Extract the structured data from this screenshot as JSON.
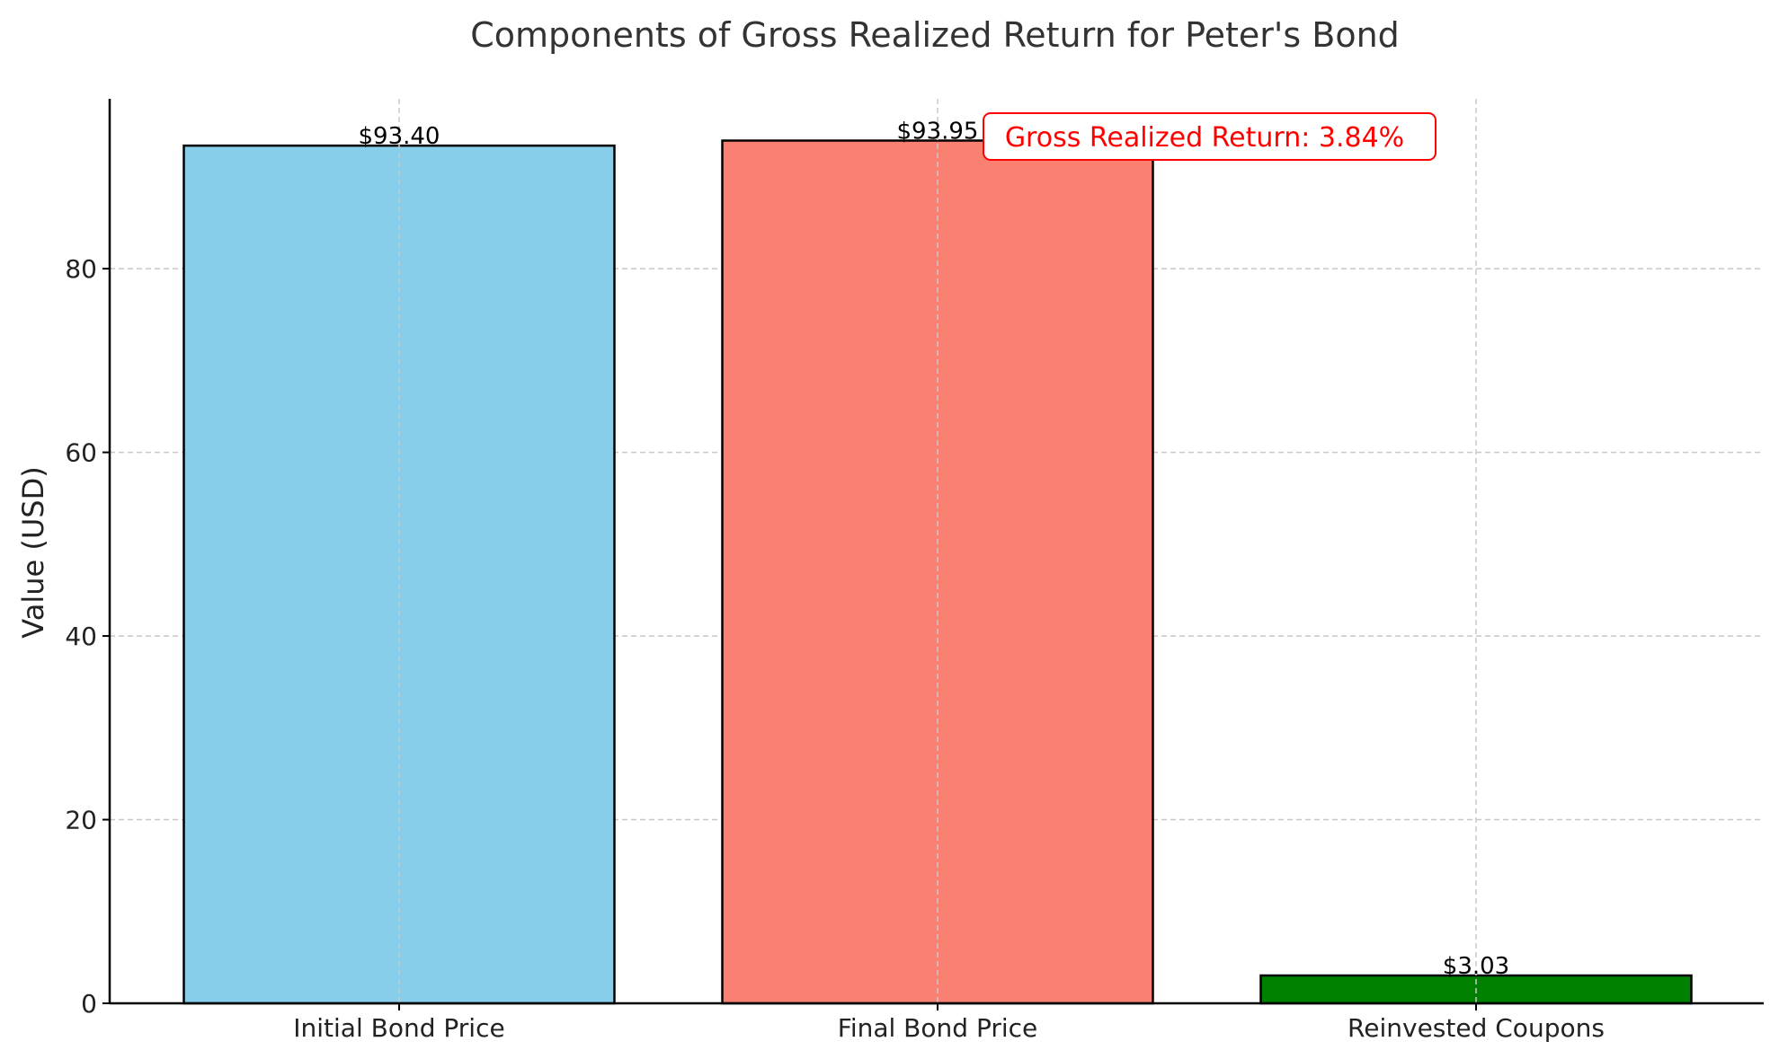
{
  "chart_data": {
    "type": "bar",
    "title": "Components of Gross Realized Return for Peter's Bond",
    "xlabel": "",
    "ylabel": "Value (USD)",
    "categories": [
      "Initial Bond Price",
      "Final Bond Price",
      "Reinvested Coupons"
    ],
    "values": [
      93.4,
      93.95,
      3.03
    ],
    "value_labels": [
      "$93.40",
      "$93.95",
      "$3.03"
    ],
    "colors": [
      "#87ceeb",
      "#fa8072",
      "#008000"
    ],
    "ylim": [
      0,
      98.5
    ],
    "yticks": [
      0,
      20,
      40,
      60,
      80
    ],
    "grid": true,
    "annotation": {
      "text": "Gross Realized Return: 3.84%",
      "color": "#ff0000"
    }
  }
}
